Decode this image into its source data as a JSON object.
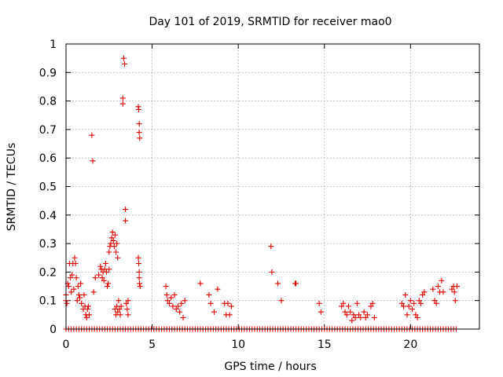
{
  "chart_data": {
    "type": "scatter",
    "title": "Day 101 of 2019, SRMTID for receiver mao0",
    "xlabel": "GPS time / hours",
    "ylabel": "SRMTID / TECUs",
    "xlim": [
      0,
      24
    ],
    "ylim": [
      0,
      1
    ],
    "xticks": [
      0,
      5,
      10,
      15,
      20
    ],
    "xtick_labels": [
      "0",
      "5",
      "10",
      "15",
      "20"
    ],
    "yticks": [
      0,
      0.1,
      0.2,
      0.3,
      0.4,
      0.5,
      0.6,
      0.7,
      0.8,
      0.9,
      1
    ],
    "ytick_labels": [
      "0",
      "0.1",
      "0.2",
      "0.3",
      "0.4",
      "0.5",
      "0.6",
      "0.7",
      "0.8",
      "0.9",
      "1"
    ],
    "grid": true,
    "marker": "+",
    "series": [
      {
        "name": "SRMTID",
        "color": "#e00000",
        "points": [
          [
            0.0,
            0.12
          ],
          [
            0.0,
            0.1
          ],
          [
            0.05,
            0.09
          ],
          [
            0.1,
            0.16
          ],
          [
            0.15,
            0.15
          ],
          [
            0.2,
            0.23
          ],
          [
            0.25,
            0.18
          ],
          [
            0.3,
            0.13
          ],
          [
            0.35,
            0.19
          ],
          [
            0.4,
            0.23
          ],
          [
            0.45,
            0.14
          ],
          [
            0.5,
            0.25
          ],
          [
            0.55,
            0.23
          ],
          [
            0.6,
            0.18
          ],
          [
            0.65,
            0.1
          ],
          [
            0.7,
            0.15
          ],
          [
            0.75,
            0.12
          ],
          [
            0.8,
            0.11
          ],
          [
            0.85,
            0.16
          ],
          [
            0.9,
            0.09
          ],
          [
            1.0,
            0.07
          ],
          [
            1.05,
            0.12
          ],
          [
            1.1,
            0.08
          ],
          [
            1.15,
            0.05
          ],
          [
            1.2,
            0.04
          ],
          [
            1.25,
            0.07
          ],
          [
            1.3,
            0.08
          ],
          [
            1.35,
            0.05
          ],
          [
            1.5,
            0.68
          ],
          [
            1.55,
            0.59
          ],
          [
            1.6,
            0.13
          ],
          [
            1.7,
            0.18
          ],
          [
            1.9,
            0.19
          ],
          [
            2.0,
            0.22
          ],
          [
            2.05,
            0.21
          ],
          [
            2.1,
            0.18
          ],
          [
            2.15,
            0.2
          ],
          [
            2.2,
            0.17
          ],
          [
            2.25,
            0.21
          ],
          [
            2.3,
            0.23
          ],
          [
            2.35,
            0.2
          ],
          [
            2.4,
            0.15
          ],
          [
            2.45,
            0.16
          ],
          [
            2.5,
            0.21
          ],
          [
            2.5,
            0.27
          ],
          [
            2.55,
            0.29
          ],
          [
            2.6,
            0.3
          ],
          [
            2.65,
            0.32
          ],
          [
            2.7,
            0.34
          ],
          [
            2.75,
            0.31
          ],
          [
            2.8,
            0.29
          ],
          [
            2.85,
            0.33
          ],
          [
            2.9,
            0.27
          ],
          [
            2.95,
            0.3
          ],
          [
            3.0,
            0.25
          ],
          [
            2.85,
            0.07
          ],
          [
            2.9,
            0.05
          ],
          [
            2.95,
            0.08
          ],
          [
            3.0,
            0.06
          ],
          [
            3.05,
            0.1
          ],
          [
            3.1,
            0.07
          ],
          [
            3.15,
            0.05
          ],
          [
            3.2,
            0.08
          ],
          [
            3.3,
            0.81
          ],
          [
            3.3,
            0.79
          ],
          [
            3.35,
            0.95
          ],
          [
            3.4,
            0.93
          ],
          [
            3.45,
            0.42
          ],
          [
            3.45,
            0.38
          ],
          [
            3.5,
            0.09
          ],
          [
            3.55,
            0.07
          ],
          [
            3.6,
            0.05
          ],
          [
            3.6,
            0.1
          ],
          [
            4.2,
            0.78
          ],
          [
            4.22,
            0.77
          ],
          [
            4.25,
            0.72
          ],
          [
            4.25,
            0.69
          ],
          [
            4.28,
            0.67
          ],
          [
            4.2,
            0.25
          ],
          [
            4.22,
            0.23
          ],
          [
            4.25,
            0.2
          ],
          [
            4.25,
            0.18
          ],
          [
            4.27,
            0.16
          ],
          [
            4.3,
            0.15
          ],
          [
            5.8,
            0.15
          ],
          [
            5.85,
            0.12
          ],
          [
            5.9,
            0.1
          ],
          [
            6.0,
            0.09
          ],
          [
            6.1,
            0.11
          ],
          [
            6.2,
            0.08
          ],
          [
            6.3,
            0.12
          ],
          [
            6.4,
            0.07
          ],
          [
            6.5,
            0.08
          ],
          [
            6.6,
            0.06
          ],
          [
            6.7,
            0.09
          ],
          [
            6.8,
            0.04
          ],
          [
            6.9,
            0.1
          ],
          [
            7.8,
            0.16
          ],
          [
            8.3,
            0.12
          ],
          [
            8.4,
            0.09
          ],
          [
            8.6,
            0.06
          ],
          [
            8.8,
            0.14
          ],
          [
            9.2,
            0.09
          ],
          [
            9.3,
            0.05
          ],
          [
            9.4,
            0.09
          ],
          [
            9.5,
            0.05
          ],
          [
            9.6,
            0.08
          ],
          [
            11.9,
            0.29
          ],
          [
            11.95,
            0.2
          ],
          [
            12.3,
            0.16
          ],
          [
            12.5,
            0.1
          ],
          [
            13.3,
            0.16
          ],
          [
            13.35,
            0.16
          ],
          [
            14.7,
            0.09
          ],
          [
            14.8,
            0.06
          ],
          [
            16.0,
            0.08
          ],
          [
            16.1,
            0.09
          ],
          [
            16.2,
            0.06
          ],
          [
            16.3,
            0.05
          ],
          [
            16.4,
            0.08
          ],
          [
            16.5,
            0.06
          ],
          [
            16.6,
            0.03
          ],
          [
            16.7,
            0.05
          ],
          [
            16.8,
            0.04
          ],
          [
            16.9,
            0.09
          ],
          [
            17.0,
            0.05
          ],
          [
            17.1,
            0.04
          ],
          [
            17.3,
            0.06
          ],
          [
            17.4,
            0.04
          ],
          [
            17.5,
            0.05
          ],
          [
            17.7,
            0.08
          ],
          [
            17.8,
            0.09
          ],
          [
            17.9,
            0.04
          ],
          [
            19.5,
            0.09
          ],
          [
            19.6,
            0.08
          ],
          [
            19.7,
            0.12
          ],
          [
            19.8,
            0.05
          ],
          [
            19.9,
            0.08
          ],
          [
            20.0,
            0.1
          ],
          [
            20.1,
            0.07
          ],
          [
            20.2,
            0.09
          ],
          [
            20.3,
            0.05
          ],
          [
            20.4,
            0.04
          ],
          [
            20.5,
            0.1
          ],
          [
            20.6,
            0.09
          ],
          [
            20.7,
            0.12
          ],
          [
            20.8,
            0.13
          ],
          [
            21.3,
            0.14
          ],
          [
            21.4,
            0.1
          ],
          [
            21.5,
            0.09
          ],
          [
            21.6,
            0.15
          ],
          [
            21.7,
            0.13
          ],
          [
            21.8,
            0.17
          ],
          [
            21.9,
            0.13
          ],
          [
            22.4,
            0.14
          ],
          [
            22.5,
            0.15
          ],
          [
            22.55,
            0.13
          ],
          [
            22.6,
            0.1
          ],
          [
            22.7,
            0.15
          ]
        ],
        "zero_line_x": [
          0.0,
          0.15,
          0.3,
          0.45,
          0.6,
          0.75,
          0.9,
          1.05,
          1.2,
          1.35,
          1.5,
          1.65,
          1.8,
          1.95,
          2.1,
          2.25,
          2.4,
          2.55,
          2.7,
          2.85,
          3.0,
          3.15,
          3.3,
          3.45,
          3.6,
          3.75,
          3.9,
          4.05,
          4.2,
          4.35,
          4.5,
          4.65,
          4.8,
          4.95,
          5.1,
          5.25,
          5.4,
          5.55,
          5.7,
          5.85,
          6.0,
          6.15,
          6.3,
          6.45,
          6.6,
          6.75,
          6.9,
          7.05,
          7.2,
          7.35,
          7.5,
          7.65,
          7.8,
          7.95,
          8.1,
          8.25,
          8.4,
          8.55,
          8.7,
          8.85,
          9.0,
          9.15,
          9.3,
          9.45,
          9.6,
          9.75,
          9.9,
          10.05,
          10.2,
          10.35,
          10.5,
          10.65,
          10.8,
          10.95,
          11.1,
          11.25,
          11.4,
          11.55,
          11.7,
          11.85,
          12.0,
          12.15,
          12.3,
          12.45,
          12.6,
          12.75,
          12.9,
          13.05,
          13.2,
          13.35,
          13.5,
          13.65,
          13.8,
          13.95,
          14.1,
          14.25,
          14.4,
          14.55,
          14.7,
          14.85,
          15.0,
          15.15,
          15.3,
          15.45,
          15.6,
          15.75,
          15.9,
          16.05,
          16.2,
          16.35,
          16.5,
          16.65,
          16.8,
          16.95,
          17.1,
          17.25,
          17.4,
          17.55,
          17.7,
          17.85,
          18.0,
          18.15,
          18.3,
          18.45,
          18.6,
          18.75,
          18.9,
          19.05,
          19.2,
          19.35,
          19.5,
          19.65,
          19.8,
          19.95,
          20.1,
          20.25,
          20.4,
          20.55,
          20.7,
          20.85,
          21.0,
          21.15,
          21.3,
          21.45,
          21.6,
          21.75,
          21.9,
          22.05,
          22.2,
          22.35,
          22.5,
          22.65
        ]
      }
    ]
  }
}
